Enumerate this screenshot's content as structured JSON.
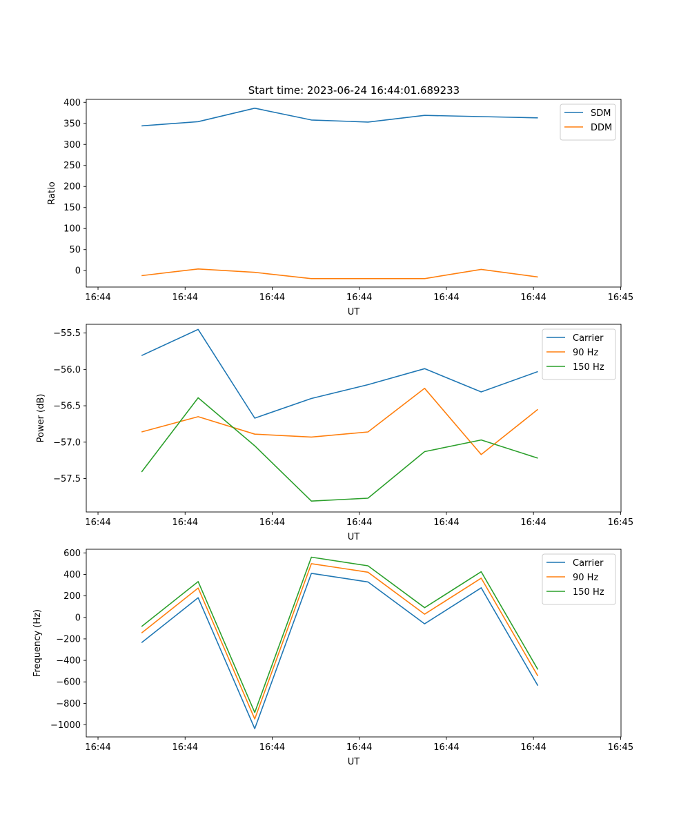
{
  "figure_title": "Start time: 2023-06-24 16:44:01.689233",
  "colors": {
    "blue": "#1f77b4",
    "orange": "#ff7f0e",
    "green": "#2ca02c"
  },
  "chart_data": [
    {
      "type": "line",
      "xlabel": "UT",
      "ylabel": "Ratio",
      "x_tick_labels": [
        "16:44",
        "16:44",
        "16:44",
        "16:44",
        "16:44",
        "16:44",
        "16:45"
      ],
      "x_tick_values": [
        0,
        10,
        20,
        30,
        40,
        50,
        60
      ],
      "xlim": [
        -1.35,
        60.05
      ],
      "y_ticks": [
        0,
        50,
        100,
        150,
        200,
        250,
        300,
        350,
        400
      ],
      "ylim": [
        -39,
        407
      ],
      "legend_position": "upper right",
      "x": [
        5,
        11.5,
        18,
        24.5,
        31,
        37.5,
        44,
        50.5
      ],
      "series": [
        {
          "name": "SDM",
          "color": "#1f77b4",
          "values": [
            344,
            354,
            386,
            358,
            353,
            369,
            366,
            363
          ]
        },
        {
          "name": "DDM",
          "color": "#ff7f0e",
          "values": [
            -12,
            4,
            -4,
            -19,
            -19,
            -19,
            3,
            -15
          ]
        }
      ]
    },
    {
      "type": "line",
      "xlabel": "UT",
      "ylabel": "Power (dB)",
      "x_tick_labels": [
        "16:44",
        "16:44",
        "16:44",
        "16:44",
        "16:44",
        "16:44",
        "16:45"
      ],
      "x_tick_values": [
        0,
        10,
        20,
        30,
        40,
        50,
        60
      ],
      "xlim": [
        -1.35,
        60.05
      ],
      "y_ticks": [
        -57.5,
        -57.0,
        -56.5,
        -56.0,
        -55.5
      ],
      "y_tick_labels": [
        "−57.5",
        "−57.0",
        "−56.5",
        "−56.0",
        "−55.5"
      ],
      "ylim": [
        -57.96,
        -55.38
      ],
      "legend_position": "upper right",
      "x": [
        5,
        11.5,
        18,
        24.5,
        31,
        37.5,
        44,
        50.5
      ],
      "series": [
        {
          "name": "Carrier",
          "color": "#1f77b4",
          "values": [
            -55.81,
            -55.45,
            -56.67,
            -56.4,
            -56.21,
            -55.99,
            -56.31,
            -56.03
          ]
        },
        {
          "name": "90 Hz",
          "color": "#ff7f0e",
          "values": [
            -56.86,
            -56.65,
            -56.89,
            -56.93,
            -56.86,
            -56.26,
            -57.17,
            -56.55
          ]
        },
        {
          "name": "150 Hz",
          "color": "#2ca02c",
          "values": [
            -57.41,
            -56.39,
            -57.05,
            -57.81,
            -57.77,
            -57.13,
            -56.97,
            -57.22
          ]
        }
      ]
    },
    {
      "type": "line",
      "xlabel": "UT",
      "ylabel": "Frequency (Hz)",
      "x_tick_labels": [
        "16:44",
        "16:44",
        "16:44",
        "16:44",
        "16:44",
        "16:44",
        "16:45"
      ],
      "x_tick_values": [
        0,
        10,
        20,
        30,
        40,
        50,
        60
      ],
      "xlim": [
        -1.35,
        60.05
      ],
      "y_ticks": [
        -1000,
        -800,
        -600,
        -400,
        -200,
        0,
        200,
        400,
        600
      ],
      "y_tick_labels": [
        "−1000",
        "−800",
        "−600",
        "−400",
        "−200",
        "0",
        "200",
        "400",
        "600"
      ],
      "ylim": [
        -1112,
        634
      ],
      "legend_position": "upper right",
      "x": [
        5,
        11.5,
        18,
        24.5,
        31,
        37.5,
        44,
        50.5
      ],
      "series": [
        {
          "name": "Carrier",
          "color": "#1f77b4",
          "values": [
            -235,
            183,
            -1035,
            410,
            330,
            -60,
            275,
            -635
          ]
        },
        {
          "name": "90 Hz",
          "color": "#ff7f0e",
          "values": [
            -145,
            273,
            -945,
            500,
            420,
            30,
            365,
            -545
          ]
        },
        {
          "name": "150 Hz",
          "color": "#2ca02c",
          "values": [
            -85,
            333,
            -885,
            560,
            480,
            90,
            425,
            -485
          ]
        }
      ]
    }
  ]
}
